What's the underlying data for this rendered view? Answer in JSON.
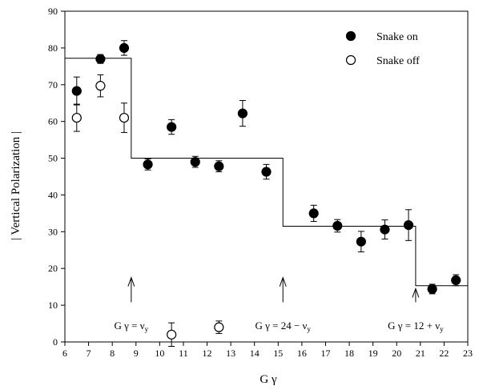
{
  "chart_data": {
    "type": "scatter",
    "title": "",
    "xlabel": "G γ",
    "ylabel": "| Vertical Polarization |",
    "xlim": [
      6,
      23
    ],
    "ylim": [
      0,
      90
    ],
    "xticks": [
      6,
      7,
      8,
      9,
      10,
      11,
      12,
      13,
      14,
      15,
      16,
      17,
      18,
      19,
      20,
      21,
      22,
      23
    ],
    "yticks": [
      0,
      10,
      20,
      30,
      40,
      50,
      60,
      70,
      80,
      90
    ],
    "grid": false,
    "legend": "top-right",
    "series": [
      {
        "name": "Snake on",
        "marker": "filled-circle",
        "points": [
          {
            "x": 6.5,
            "y": 68.3,
            "err": 3.8
          },
          {
            "x": 7.5,
            "y": 77.0,
            "err": 1.2
          },
          {
            "x": 8.5,
            "y": 80.0,
            "err": 2.0
          },
          {
            "x": 9.5,
            "y": 48.3,
            "err": 1.5
          },
          {
            "x": 10.5,
            "y": 58.5,
            "err": 2.0
          },
          {
            "x": 11.5,
            "y": 49.0,
            "err": 1.5
          },
          {
            "x": 12.5,
            "y": 47.8,
            "err": 1.5
          },
          {
            "x": 13.5,
            "y": 62.2,
            "err": 3.5
          },
          {
            "x": 14.5,
            "y": 46.3,
            "err": 2.0
          },
          {
            "x": 16.5,
            "y": 35.0,
            "err": 2.2
          },
          {
            "x": 17.5,
            "y": 31.6,
            "err": 1.7
          },
          {
            "x": 18.5,
            "y": 27.3,
            "err": 2.8
          },
          {
            "x": 19.5,
            "y": 30.6,
            "err": 2.6
          },
          {
            "x": 20.5,
            "y": 31.8,
            "err": 4.2
          },
          {
            "x": 21.5,
            "y": 14.4,
            "err": 1.3
          },
          {
            "x": 22.5,
            "y": 16.8,
            "err": 1.5
          }
        ]
      },
      {
        "name": "Snake off",
        "marker": "open-circle",
        "points": [
          {
            "x": 6.5,
            "y": 61.0,
            "err": 3.7
          },
          {
            "x": 7.5,
            "y": 69.7,
            "err": 3.0
          },
          {
            "x": 8.5,
            "y": 61.0,
            "err": 4.0
          },
          {
            "x": 10.5,
            "y": 2.0,
            "err": 3.2
          },
          {
            "x": 12.5,
            "y": 4.0,
            "err": 1.7
          }
        ]
      }
    ],
    "step_line": [
      {
        "x": 6,
        "y": 77.2
      },
      {
        "x": 8.8,
        "y": 77.2
      },
      {
        "x": 8.8,
        "y": 50.0
      },
      {
        "x": 15.2,
        "y": 50.0
      },
      {
        "x": 15.2,
        "y": 31.5
      },
      {
        "x": 20.8,
        "y": 31.5
      },
      {
        "x": 20.8,
        "y": 15.3
      },
      {
        "x": 23,
        "y": 15.3
      }
    ],
    "annotations": [
      {
        "x": 8.8,
        "y_from": 10.8,
        "y_to": 17.5,
        "pre": "G γ = ν",
        "sub": "y",
        "post": "",
        "text_y": 3.5
      },
      {
        "x": 15.2,
        "y_from": 10.8,
        "y_to": 17.5,
        "pre": "G γ = 24 − ν",
        "sub": "y",
        "post": "",
        "text_y": 3.5
      },
      {
        "x": 20.8,
        "y_from": 10.8,
        "y_to": 14.5,
        "pre": "G γ = 12 + ν",
        "sub": "y",
        "post": "",
        "text_y": 3.5
      }
    ]
  }
}
